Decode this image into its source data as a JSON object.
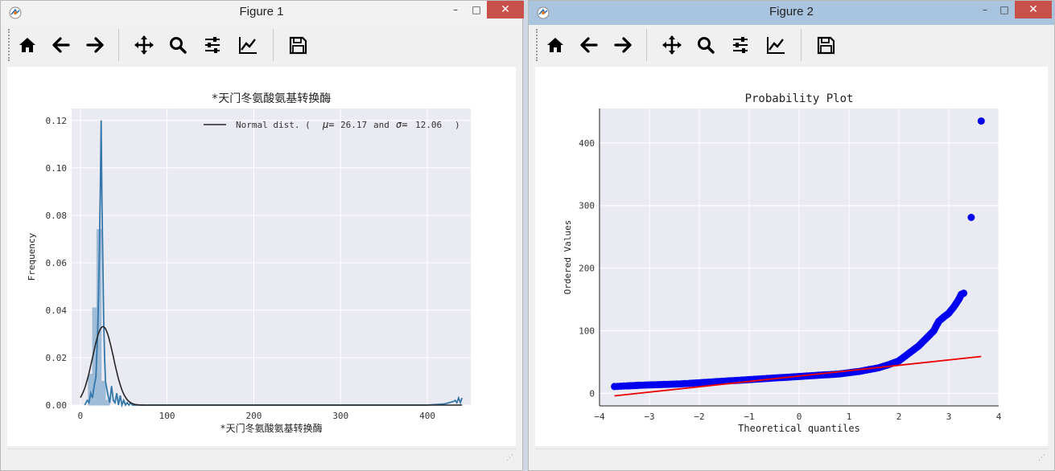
{
  "windows": [
    {
      "title": "Figure 1",
      "toolbar": [
        "home-icon",
        "back-arrow-icon",
        "forward-arrow-icon",
        "pan-icon",
        "zoom-icon",
        "configure-subplots-icon",
        "edit-axis-icon",
        "save-icon"
      ],
      "chart_data": {
        "type": "histogram",
        "title": "*天门冬氨酸氨基转换酶",
        "xlabel": "*天门冬氨酸氨基转换酶",
        "ylabel": "Frequency",
        "xlim": [
          -10,
          450
        ],
        "ylim": [
          0,
          0.125
        ],
        "xticks": [
          0,
          100,
          200,
          300,
          400
        ],
        "yticks": [
          0.0,
          0.02,
          0.04,
          0.06,
          0.08,
          0.1,
          0.12
        ],
        "ytick_labels": [
          "0.00",
          "0.02",
          "0.04",
          "0.06",
          "0.08",
          "0.10",
          "0.12"
        ],
        "grid": true,
        "legend_placement": "top-right",
        "legend": {
          "label_prefix": "Normal dist. (",
          "mu_symbol": "μ=",
          "mu_value": "26.17",
          "and_text": "and",
          "sigma_symbol": "σ=",
          "sigma_value": "12.06",
          "label_suffix": ")"
        },
        "normal_fit": {
          "mu": 26.17,
          "sigma": 12.06
        },
        "histogram": {
          "bin_edges": [
            9.3,
            14.2,
            19.1,
            24.0,
            28.9,
            33.8
          ],
          "heights": [
            0.013,
            0.041,
            0.074,
            0.01,
            0.002
          ]
        },
        "kde": {
          "x": [
            5,
            8,
            10,
            12,
            14,
            16,
            18,
            20,
            21,
            22,
            23,
            24,
            25,
            26,
            27,
            28,
            29,
            30,
            32,
            34,
            36,
            38,
            40,
            42,
            44,
            46,
            48,
            50,
            52,
            54,
            56,
            58,
            60,
            70,
            80,
            100,
            200,
            300,
            400,
            420,
            425,
            430,
            432,
            434,
            436,
            438,
            440
          ],
          "y": [
            0,
            0.002,
            0.001,
            0.005,
            0.003,
            0.008,
            0.012,
            0.03,
            0.045,
            0.065,
            0.09,
            0.12,
            0.085,
            0.06,
            0.035,
            0.02,
            0.01,
            0.008,
            0.004,
            0.001,
            0.008,
            0.002,
            0.001,
            0.005,
            0.0,
            0.004,
            0.0,
            0.002,
            0.0,
            0.001,
            0.0,
            0.001,
            0.0,
            0.0,
            0.0,
            0.0,
            0.0,
            0.0,
            0.0,
            0.0005,
            0.001,
            0.0015,
            0.002,
            0.001,
            0.003,
            0.001,
            0.003
          ]
        },
        "colors": {
          "hist": "#92b4d3",
          "kde": "#3377ab",
          "fit": "#262626",
          "axes_bg": "#eaeaf2"
        }
      }
    },
    {
      "title": "Figure 2",
      "toolbar": [
        "home-icon",
        "back-arrow-icon",
        "forward-arrow-icon",
        "pan-icon",
        "zoom-icon",
        "configure-subplots-icon",
        "edit-axis-icon",
        "save-icon"
      ],
      "chart_data": {
        "type": "scatter",
        "title": "Probability Plot",
        "xlabel": "Theoretical quantiles",
        "ylabel": "Ordered Values",
        "xlim": [
          -4,
          4
        ],
        "ylim": [
          -20,
          455
        ],
        "xticks": [
          -4,
          -3,
          -2,
          -1,
          0,
          1,
          2,
          3,
          4
        ],
        "xtick_labels": [
          "−4",
          "−3",
          "−2",
          "−1",
          "0",
          "1",
          "2",
          "3",
          "4"
        ],
        "yticks": [
          0,
          100,
          200,
          300,
          400
        ],
        "ytick_labels": [
          "0",
          "100",
          "200",
          "300",
          "400"
        ],
        "grid": true,
        "series": [
          {
            "role": "points",
            "x": [
              -3.7,
              -3.45,
              -3.3,
              -3.2,
              -3.0,
              -2.8,
              -2.6,
              -2.4,
              -2.2,
              -2.0,
              -1.8,
              -1.6,
              -1.4,
              -1.2,
              -1.0,
              -0.8,
              -0.6,
              -0.4,
              -0.2,
              0.0,
              0.2,
              0.4,
              0.6,
              0.8,
              1.0,
              1.2,
              1.4,
              1.6,
              1.8,
              2.0,
              2.1,
              2.2,
              2.3,
              2.4,
              2.5,
              2.6,
              2.7,
              2.75,
              2.8,
              2.9,
              3.0,
              3.1,
              3.2,
              3.25,
              3.3,
              3.45,
              3.65
            ],
            "y": [
              11,
              12,
              12.5,
              13,
              13.5,
              14,
              14.5,
              15,
              16,
              17,
              18,
              19,
              20,
              21,
              22,
              23,
              24,
              25,
              26,
              27,
              28,
              29,
              30,
              31,
              33,
              35,
              38,
              41,
              46,
              52,
              58,
              64,
              70,
              76,
              84,
              92,
              100,
              108,
              115,
              122,
              128,
              138,
              150,
              158,
              160,
              281,
              435
            ]
          },
          {
            "role": "fit_line",
            "x": [
              -3.7,
              3.65
            ],
            "y": [
              -4,
              59
            ]
          }
        ],
        "colors": {
          "points": "#0000ee",
          "line": "#ee0000",
          "axes_bg": "#eaeaf2"
        }
      }
    }
  ]
}
